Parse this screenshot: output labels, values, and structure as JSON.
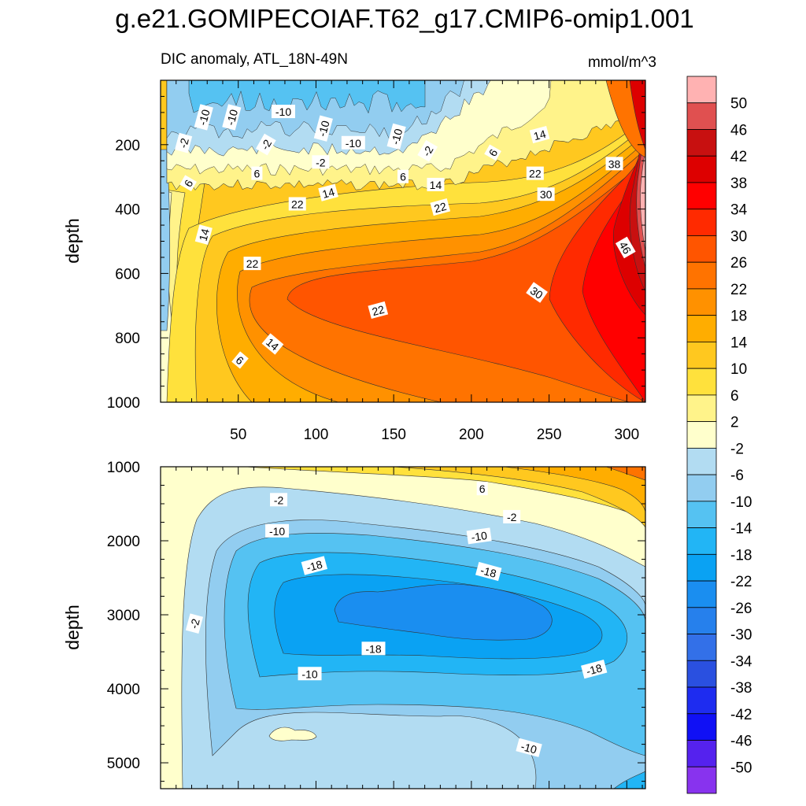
{
  "chart_data": {
    "type": "contour",
    "title": "g.e21.GOMIPECOIAF.T62_g17.CMIP6-omip1.001",
    "subtitle_left": "DIC anomaly, ATL_18N-49N",
    "subtitle_right": "mmol/m^3",
    "ylabel": "depth",
    "xlim": [
      0,
      312
    ],
    "x_ticks": [
      "50",
      "100",
      "150",
      "200",
      "250",
      "300"
    ],
    "x_tick_values": [
      50,
      100,
      150,
      200,
      250,
      300
    ],
    "top_panel": {
      "ylim": [
        0,
        1000
      ],
      "y_ticks": [
        "200",
        "400",
        "600",
        "800",
        "1000"
      ],
      "y_tick_values": [
        200,
        400,
        600,
        800,
        1000
      ],
      "contour_labels": [
        {
          "text": "-10",
          "x": 28,
          "y": 115,
          "angle": -75
        },
        {
          "text": "-10",
          "x": 46,
          "y": 115,
          "angle": -75
        },
        {
          "text": "-10",
          "x": 79,
          "y": 98,
          "angle": 0
        },
        {
          "text": "-10",
          "x": 105,
          "y": 150,
          "angle": -75
        },
        {
          "text": "-10",
          "x": 124,
          "y": 195,
          "angle": 0
        },
        {
          "text": "-10",
          "x": 152,
          "y": 175,
          "angle": -75
        },
        {
          "text": "-2",
          "x": 15,
          "y": 195,
          "angle": -75
        },
        {
          "text": "-2",
          "x": 68,
          "y": 200,
          "angle": -60
        },
        {
          "text": "-2",
          "x": 103,
          "y": 255,
          "angle": 0
        },
        {
          "text": "-2",
          "x": 172,
          "y": 220,
          "angle": -60
        },
        {
          "text": "6",
          "x": 62,
          "y": 290,
          "angle": 0
        },
        {
          "text": "6",
          "x": 156,
          "y": 300,
          "angle": 0
        },
        {
          "text": "6",
          "x": 214,
          "y": 225,
          "angle": -60
        },
        {
          "text": "6",
          "x": 18,
          "y": 320,
          "angle": -60
        },
        {
          "text": "14",
          "x": 244,
          "y": 170,
          "angle": -15
        },
        {
          "text": "14",
          "x": 177,
          "y": 325,
          "angle": 0
        },
        {
          "text": "14",
          "x": 108,
          "y": 350,
          "angle": -15
        },
        {
          "text": "14",
          "x": 28,
          "y": 480,
          "angle": -75
        },
        {
          "text": "14",
          "x": 72,
          "y": 820,
          "angle": 40
        },
        {
          "text": "22",
          "x": 241,
          "y": 290,
          "angle": 0
        },
        {
          "text": "22",
          "x": 88,
          "y": 385,
          "angle": 0
        },
        {
          "text": "22",
          "x": 180,
          "y": 395,
          "angle": -15
        },
        {
          "text": "22",
          "x": 59,
          "y": 570,
          "angle": 0
        },
        {
          "text": "22",
          "x": 140,
          "y": 715,
          "angle": -15
        },
        {
          "text": "30",
          "x": 248,
          "y": 355,
          "angle": 0
        },
        {
          "text": "30",
          "x": 242,
          "y": 660,
          "angle": 35
        },
        {
          "text": "38",
          "x": 292,
          "y": 260,
          "angle": 0
        },
        {
          "text": "46",
          "x": 299,
          "y": 520,
          "angle": 60
        },
        {
          "text": "6",
          "x": 51,
          "y": 870,
          "angle": 40
        }
      ]
    },
    "bottom_panel": {
      "ylim": [
        1000,
        5350
      ],
      "y_ticks": [
        "1000",
        "2000",
        "3000",
        "4000",
        "5000"
      ],
      "y_tick_values": [
        1000,
        2000,
        3000,
        4000,
        5000
      ],
      "contour_labels": [
        {
          "text": "-2",
          "x": 76,
          "y": 1450,
          "angle": 0
        },
        {
          "text": "6",
          "x": 207,
          "y": 1300,
          "angle": 0
        },
        {
          "text": "-2",
          "x": 226,
          "y": 1680,
          "angle": 0
        },
        {
          "text": "-10",
          "x": 75,
          "y": 1870,
          "angle": 0
        },
        {
          "text": "-10",
          "x": 205,
          "y": 1940,
          "angle": -8
        },
        {
          "text": "-18",
          "x": 99,
          "y": 2340,
          "angle": -15
        },
        {
          "text": "-18",
          "x": 211,
          "y": 2420,
          "angle": 15
        },
        {
          "text": "-18",
          "x": 137,
          "y": 3460,
          "angle": 0
        },
        {
          "text": "-18",
          "x": 279,
          "y": 3740,
          "angle": -15
        },
        {
          "text": "-10",
          "x": 96,
          "y": 3800,
          "angle": 0
        },
        {
          "text": "-10",
          "x": 237,
          "y": 4800,
          "angle": 15
        },
        {
          "text": "-2",
          "x": 22,
          "y": 3120,
          "angle": -75
        }
      ]
    },
    "colorbar": {
      "tick_labels": [
        "50",
        "46",
        "42",
        "38",
        "34",
        "30",
        "26",
        "22",
        "18",
        "14",
        "10",
        "6",
        "2",
        "-2",
        "-6",
        "-10",
        "-14",
        "-18",
        "-22",
        "-26",
        "-30",
        "-34",
        "-38",
        "-42",
        "-46",
        "-50"
      ],
      "colors": [
        "#ffb2b2",
        "#e05050",
        "#c81010",
        "#dd0000",
        "#ff0000",
        "#ff2a00",
        "#ff5500",
        "#ff7300",
        "#ff9100",
        "#ffad00",
        "#ffc81f",
        "#ffe13c",
        "#fff38a",
        "#ffffcc",
        "#b2dcf2",
        "#92cdf0",
        "#55c2f2",
        "#22b5f5",
        "#0aa2f3",
        "#1a8ef0",
        "#2680ec",
        "#3370e8",
        "#2a50e0",
        "#1e2cf0",
        "#1010f5",
        "#5522ee",
        "#8833ee"
      ]
    }
  }
}
